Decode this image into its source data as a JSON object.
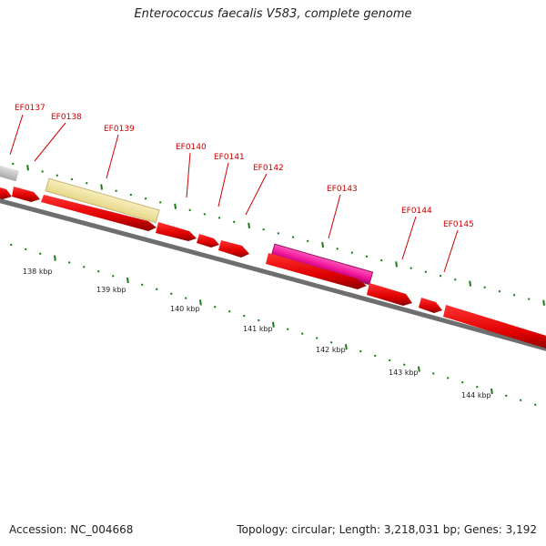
{
  "title": "Enterococcus faecalis V583, complete genome",
  "footer": {
    "accession": "Accession: NC_004668",
    "summary": "Topology: circular; Length: 3,218,031 bp; Genes: 3,192"
  },
  "colors": {
    "cds": "#ee0000",
    "cds_dark": "#9a0000",
    "highlight_yellow": "#f2e6a0",
    "highlight_magenta": "#ee1199",
    "neighbor_gray": "#c8c8c8",
    "backbone": "#777777",
    "tick_green": "#1a7a1a",
    "label_red": "#cc0000"
  },
  "scale_labels": [
    "138 kbp",
    "139 kbp",
    "140 kbp",
    "141 kbp",
    "142 kbp",
    "143 kbp",
    "144 kbp"
  ],
  "gene_labels": [
    "EF0137",
    "EF0138",
    "EF0139",
    "EF0140",
    "EF0141",
    "EF0142",
    "EF0143",
    "EF0144",
    "EF0145"
  ]
}
